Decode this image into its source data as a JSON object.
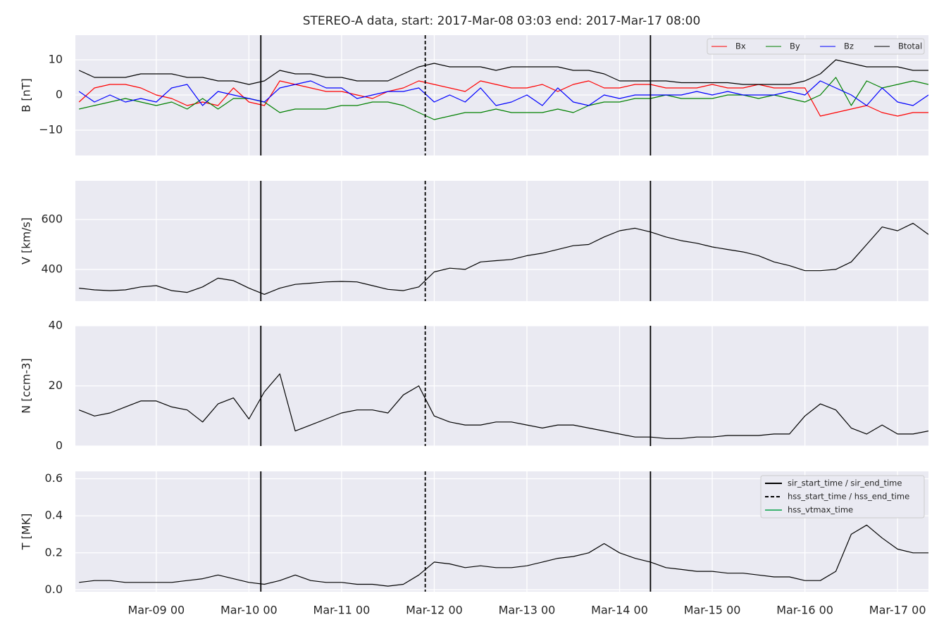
{
  "chart_data": [
    {
      "type": "line",
      "title": "STEREO-A data, start: 2017-Mar-08 03:03  end: 2017-Mar-17 08:00",
      "ylabel": "B [nT]",
      "x": [
        "Mar-08 04:00",
        "Mar-08 08:00",
        "Mar-08 12:00",
        "Mar-08 16:00",
        "Mar-08 20:00",
        "Mar-09 00:00",
        "Mar-09 04:00",
        "Mar-09 08:00",
        "Mar-09 12:00",
        "Mar-09 16:00",
        "Mar-09 20:00",
        "Mar-10 00:00",
        "Mar-10 04:00",
        "Mar-10 08:00",
        "Mar-10 12:00",
        "Mar-10 16:00",
        "Mar-10 20:00",
        "Mar-11 00:00",
        "Mar-11 04:00",
        "Mar-11 08:00",
        "Mar-11 12:00",
        "Mar-11 16:00",
        "Mar-11 20:00",
        "Mar-12 00:00",
        "Mar-12 04:00",
        "Mar-12 08:00",
        "Mar-12 12:00",
        "Mar-12 16:00",
        "Mar-12 20:00",
        "Mar-13 00:00",
        "Mar-13 04:00",
        "Mar-13 08:00",
        "Mar-13 12:00",
        "Mar-13 16:00",
        "Mar-13 20:00",
        "Mar-14 00:00",
        "Mar-14 04:00",
        "Mar-14 08:00",
        "Mar-14 12:00",
        "Mar-14 16:00",
        "Mar-14 20:00",
        "Mar-15 00:00",
        "Mar-15 04:00",
        "Mar-15 08:00",
        "Mar-15 12:00",
        "Mar-15 16:00",
        "Mar-15 20:00",
        "Mar-16 00:00",
        "Mar-16 04:00",
        "Mar-16 08:00",
        "Mar-16 12:00",
        "Mar-16 16:00",
        "Mar-16 20:00",
        "Mar-17 00:00",
        "Mar-17 04:00",
        "Mar-17 08:00"
      ],
      "xlim": [
        "Mar-08 03:03",
        "Mar-17 08:00"
      ],
      "xticks": [
        {
          "value": "Mar-09 00:00",
          "label": "Mar-09 00"
        },
        {
          "value": "Mar-10 00:00",
          "label": "Mar-10 00"
        },
        {
          "value": "Mar-11 00:00",
          "label": "Mar-11 00"
        },
        {
          "value": "Mar-12 00:00",
          "label": "Mar-12 00"
        },
        {
          "value": "Mar-13 00:00",
          "label": "Mar-13 00"
        },
        {
          "value": "Mar-14 00:00",
          "label": "Mar-14 00"
        },
        {
          "value": "Mar-15 00:00",
          "label": "Mar-15 00"
        },
        {
          "value": "Mar-16 00:00",
          "label": "Mar-16 00"
        },
        {
          "value": "Mar-17 00:00",
          "label": "Mar-17 00"
        }
      ],
      "ylim": [
        -17.2,
        17
      ],
      "yticks": [
        {
          "value": -10,
          "label": "−10"
        },
        0,
        10
      ],
      "grid": true,
      "legend": "upper right",
      "series": [
        {
          "name": "Bx",
          "color": "#ff0000",
          "values": [
            -2,
            2,
            3,
            3,
            2,
            0,
            -1,
            -3,
            -2,
            -3,
            2,
            -2,
            -3,
            4,
            3,
            2,
            1,
            1,
            0,
            -1,
            1,
            2,
            4,
            3,
            2,
            1,
            4,
            3,
            2,
            2,
            3,
            1,
            3,
            4,
            2,
            2,
            3,
            3,
            2,
            2,
            2,
            3,
            2,
            2,
            3,
            2,
            2,
            2,
            -6,
            -5,
            -4,
            -3,
            -5,
            -6,
            -5,
            -5
          ]
        },
        {
          "name": "By",
          "color": "#008000",
          "values": [
            -4,
            -3,
            -2,
            -1,
            -2,
            -3,
            -2,
            -4,
            -1,
            -4,
            -1,
            -1,
            -2,
            -5,
            -4,
            -4,
            -4,
            -3,
            -3,
            -2,
            -2,
            -3,
            -5,
            -7,
            -6,
            -5,
            -5,
            -4,
            -5,
            -5,
            -5,
            -4,
            -5,
            -3,
            -2,
            -2,
            -1,
            -1,
            0,
            -1,
            -1,
            -1,
            0,
            0,
            -1,
            0,
            -1,
            -2,
            0,
            5,
            -3,
            4,
            2,
            3,
            4,
            3
          ]
        },
        {
          "name": "Bz",
          "color": "#0000ff",
          "values": [
            1,
            -2,
            0,
            -2,
            -1,
            -2,
            2,
            3,
            -3,
            1,
            0,
            -1,
            -2,
            2,
            3,
            4,
            2,
            2,
            -1,
            0,
            1,
            1,
            2,
            -2,
            0,
            -2,
            2,
            -3,
            -2,
            0,
            -3,
            2,
            -2,
            -3,
            0,
            -1,
            0,
            0,
            0,
            0,
            1,
            0,
            1,
            0,
            0,
            0,
            1,
            0,
            4,
            2,
            0,
            -3,
            2,
            -2,
            -3,
            0
          ]
        },
        {
          "name": "Btotal",
          "color": "#000000",
          "values": [
            7,
            5,
            5,
            5,
            6,
            6,
            6,
            5,
            5,
            4,
            4,
            3,
            4,
            7,
            6,
            6,
            5,
            5,
            4,
            4,
            4,
            6,
            8,
            9,
            8,
            8,
            8,
            7,
            8,
            8,
            8,
            8,
            7,
            7,
            6,
            4,
            4,
            4,
            4,
            3.5,
            3.5,
            3.5,
            3.5,
            3,
            3,
            3,
            3,
            4,
            6,
            10,
            9,
            8,
            8,
            8,
            7,
            7
          ]
        }
      ]
    },
    {
      "type": "line",
      "ylabel": "V [km/s]",
      "ylim": [
        273,
        755
      ],
      "yticks": [
        400,
        600
      ],
      "grid": true,
      "series": [
        {
          "color": "#000000",
          "values": [
            325,
            318,
            315,
            318,
            330,
            335,
            315,
            308,
            330,
            365,
            355,
            325,
            300,
            325,
            340,
            345,
            350,
            352,
            350,
            335,
            320,
            315,
            330,
            390,
            405,
            400,
            430,
            435,
            440,
            455,
            465,
            480,
            495,
            500,
            530,
            555,
            565,
            550,
            530,
            515,
            505,
            490,
            480,
            470,
            455,
            430,
            415,
            395,
            395,
            400,
            430,
            500,
            570,
            555,
            585,
            540
          ]
        }
      ]
    },
    {
      "type": "line",
      "ylabel": "N [ccm-3]",
      "ylim": [
        0,
        40
      ],
      "yticks": [
        0,
        20,
        40
      ],
      "grid": true,
      "series": [
        {
          "color": "#000000",
          "values": [
            12,
            10,
            11,
            13,
            15,
            15,
            13,
            12,
            8,
            14,
            16,
            9,
            18,
            24,
            5,
            7,
            9,
            11,
            12,
            12,
            11,
            17,
            20,
            10,
            8,
            7,
            7,
            8,
            8,
            7,
            6,
            7,
            7,
            6,
            5,
            4,
            3,
            3,
            2.5,
            2.5,
            3,
            3,
            3.5,
            3.5,
            3.5,
            4,
            4,
            10,
            14,
            12,
            6,
            4,
            7,
            4,
            4,
            5
          ]
        }
      ]
    },
    {
      "type": "line",
      "ylabel": "T [MK]",
      "ylim": [
        -0.01,
        0.64
      ],
      "yticks": [
        {
          "value": 0,
          "label": "0.0"
        },
        0.2,
        0.4,
        0.6
      ],
      "grid": true,
      "legend": "upper right",
      "series": [
        {
          "color": "#000000",
          "values": [
            0.04,
            0.05,
            0.05,
            0.04,
            0.04,
            0.04,
            0.04,
            0.05,
            0.06,
            0.08,
            0.06,
            0.04,
            0.03,
            0.05,
            0.08,
            0.05,
            0.04,
            0.04,
            0.03,
            0.03,
            0.02,
            0.03,
            0.08,
            0.15,
            0.14,
            0.12,
            0.13,
            0.12,
            0.12,
            0.13,
            0.15,
            0.17,
            0.18,
            0.2,
            0.25,
            0.2,
            0.17,
            0.15,
            0.12,
            0.11,
            0.1,
            0.1,
            0.09,
            0.09,
            0.08,
            0.07,
            0.07,
            0.05,
            0.05,
            0.1,
            0.3,
            0.35,
            0.28,
            0.22,
            0.2,
            0.2
          ]
        }
      ],
      "events": [
        {
          "name": "sir_start_time / sir_end_time",
          "color": "#000000",
          "dash": "solid",
          "times": [
            "Mar-10 03:05",
            "Mar-14 08:00"
          ]
        },
        {
          "name": "hss_start_time / hss_end_time",
          "color": "#000000",
          "dash": "dashed",
          "times": [
            "Mar-11 21:40"
          ]
        },
        {
          "name": "hss_vtmax_time",
          "color": "#3cb371",
          "dash": "solid",
          "times": []
        }
      ]
    }
  ]
}
